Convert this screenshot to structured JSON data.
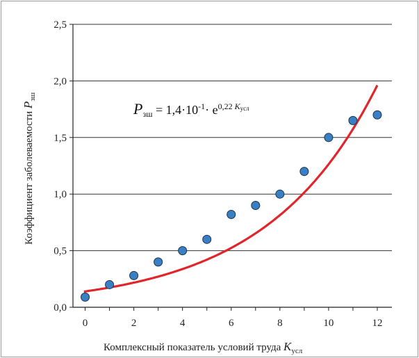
{
  "chart_data": {
    "type": "scatter",
    "xlabel": "Комплексный показатель условий труда",
    "xlabel_symbol": "K",
    "xlabel_subscript": "усл",
    "ylabel": "Коэффициент заболеваемости",
    "ylabel_symbol": "P",
    "ylabel_subscript": "зш",
    "xlim": [
      -0.5,
      12.6
    ],
    "ylim": [
      0.0,
      2.5
    ],
    "x_ticks": [
      0,
      2,
      4,
      6,
      8,
      10,
      12
    ],
    "x_tick_labels": [
      "0",
      "2",
      "4",
      "6",
      "8",
      "10",
      "12"
    ],
    "y_ticks": [
      0.0,
      0.5,
      1.0,
      1.5,
      2.0,
      2.5
    ],
    "y_tick_labels": [
      "0,0",
      "0,5",
      "1,0",
      "1,5",
      "2,0",
      "2,5"
    ],
    "grid": "horizontal",
    "series": [
      {
        "kind": "points",
        "color": "#3a7fc4",
        "x": [
          0,
          1,
          2,
          3,
          4,
          5,
          6,
          7,
          8,
          9,
          10,
          11,
          12
        ],
        "y": [
          0.09,
          0.2,
          0.28,
          0.4,
          0.5,
          0.6,
          0.82,
          0.9,
          1.0,
          1.2,
          1.5,
          1.65,
          1.7
        ]
      },
      {
        "kind": "trend",
        "model": "exponential",
        "a": 0.14,
        "b": 0.22,
        "color": "#e0262b"
      }
    ],
    "equation": {
      "lhs_symbol": "P",
      "lhs_subscript": "зш",
      "rhs_prefix": " = 1,4·10",
      "rhs_exp": "-1",
      "rhs_mid": "· e",
      "rhs_power": "0,22 ",
      "rhs_power_symbol": "K",
      "rhs_power_subscript": "усл"
    }
  }
}
